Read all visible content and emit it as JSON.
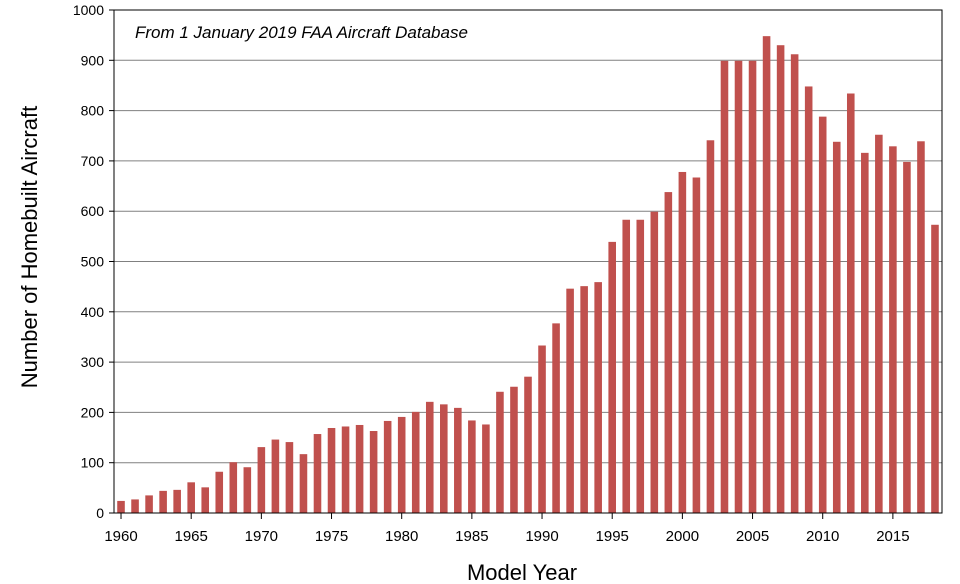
{
  "chart_data": {
    "type": "bar",
    "annotation": "From 1 January 2019 FAA Aircraft Database",
    "xlabel": "Model Year",
    "ylabel": "Number of Homebuilt Aircraft",
    "ylim": [
      0,
      1000
    ],
    "y_ticks": [
      0,
      100,
      200,
      300,
      400,
      500,
      600,
      700,
      800,
      900,
      1000
    ],
    "x_ticks": [
      1960,
      1965,
      1970,
      1975,
      1980,
      1985,
      1990,
      1995,
      2000,
      2005,
      2010,
      2015
    ],
    "grid": "horizontal",
    "bar_color": "#c0504d",
    "categories": [
      1960,
      1961,
      1962,
      1963,
      1964,
      1965,
      1966,
      1967,
      1968,
      1969,
      1970,
      1971,
      1972,
      1973,
      1974,
      1975,
      1976,
      1977,
      1978,
      1979,
      1980,
      1981,
      1982,
      1983,
      1984,
      1985,
      1986,
      1987,
      1988,
      1989,
      1990,
      1991,
      1992,
      1993,
      1994,
      1995,
      1996,
      1997,
      1998,
      1999,
      2000,
      2001,
      2002,
      2003,
      2004,
      2005,
      2006,
      2007,
      2008,
      2009,
      2010,
      2011,
      2012,
      2013,
      2014,
      2015,
      2016,
      2017,
      2018
    ],
    "values": [
      24,
      27,
      35,
      44,
      46,
      61,
      51,
      82,
      101,
      91,
      131,
      146,
      141,
      117,
      157,
      169,
      172,
      175,
      163,
      183,
      191,
      201,
      221,
      216,
      209,
      184,
      176,
      241,
      251,
      271,
      333,
      377,
      446,
      451,
      459,
      539,
      583,
      583,
      599,
      638,
      678,
      667,
      741,
      899,
      899,
      899,
      948,
      930,
      912,
      848,
      788,
      738,
      834,
      716,
      752,
      729,
      698,
      739,
      573
    ]
  }
}
